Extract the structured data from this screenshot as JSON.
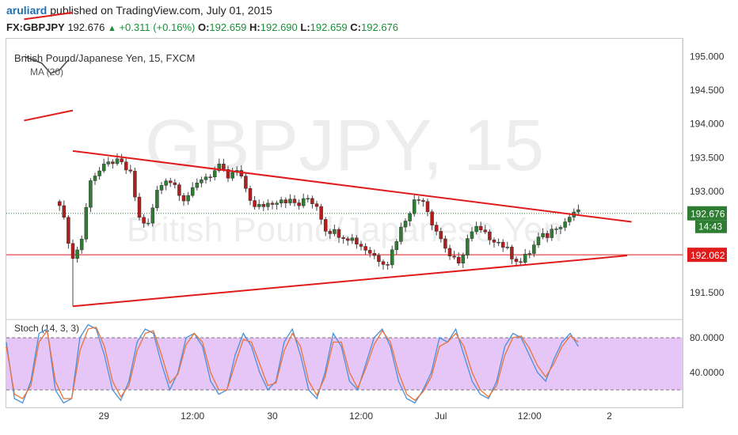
{
  "header": {
    "author": "aruliard",
    "published_text": "published on TradingView.com, July 01, 2015",
    "symbol": "FX:GBPJPY",
    "last": "192.676",
    "change": "+0.311 (+0.16%)",
    "o_label": "O:",
    "o": "192.659",
    "h_label": "H:",
    "h": "192.690",
    "l_label": "L:",
    "l": "192.659",
    "c_label": "C:",
    "c": "192.676"
  },
  "colors": {
    "up": "#2e7d32",
    "down": "#b71c1c",
    "trendline": "#e01b1b",
    "stoch_k": "#4a90d9",
    "stoch_d": "#e8743b",
    "stoch_band": "#e6c6f7"
  },
  "chart_data": [
    {
      "type": "candlestick",
      "title": "British Pound/Japanese Yen, 15, FXCM",
      "watermark_main": "GBPJPY, 15",
      "watermark_sub": "British Pound/Japanese Yen",
      "y_ticks": [
        "195.000",
        "194.500",
        "194.000",
        "193.500",
        "193.000",
        "191.500"
      ],
      "x_ticks": [
        "29",
        "12:00",
        "30",
        "12:00",
        "Jul",
        "12:00",
        "2"
      ],
      "ylim": [
        191.15,
        195.25
      ],
      "price_label": "192.676",
      "countdown_label": "14:43",
      "level_label": "192.062",
      "horizontal_level": 192.062,
      "last_price": 192.676,
      "close_path": [
        [
          0,
          192.85
        ],
        [
          3,
          192.0
        ],
        [
          5,
          192.3
        ],
        [
          7,
          193.2
        ],
        [
          10,
          193.35
        ],
        [
          12,
          193.45
        ],
        [
          14,
          193.4
        ],
        [
          16,
          193.25
        ],
        [
          18,
          192.6
        ],
        [
          20,
          192.5
        ],
        [
          22,
          193.0
        ],
        [
          24,
          193.2
        ],
        [
          26,
          193.1
        ],
        [
          28,
          192.9
        ],
        [
          30,
          193.0
        ],
        [
          32,
          193.2
        ],
        [
          34,
          193.25
        ],
        [
          36,
          193.35
        ],
        [
          38,
          193.2
        ],
        [
          40,
          193.3
        ],
        [
          42,
          193.05
        ],
        [
          44,
          192.75
        ],
        [
          46,
          192.8
        ],
        [
          48,
          192.85
        ],
        [
          50,
          192.9
        ],
        [
          52,
          192.85
        ],
        [
          54,
          192.8
        ],
        [
          56,
          192.9
        ],
        [
          58,
          192.8
        ],
        [
          60,
          192.45
        ],
        [
          62,
          192.4
        ],
        [
          64,
          192.35
        ],
        [
          66,
          192.3
        ],
        [
          68,
          192.2
        ],
        [
          70,
          192.1
        ],
        [
          72,
          192.0
        ],
        [
          74,
          191.95
        ],
        [
          76,
          192.3
        ],
        [
          78,
          192.6
        ],
        [
          80,
          192.85
        ],
        [
          82,
          192.9
        ],
        [
          84,
          192.55
        ],
        [
          86,
          192.3
        ],
        [
          88,
          192.05
        ],
        [
          90,
          191.9
        ],
        [
          92,
          192.3
        ],
        [
          94,
          192.45
        ],
        [
          96,
          192.35
        ],
        [
          98,
          192.3
        ],
        [
          100,
          192.2
        ],
        [
          102,
          192.05
        ],
        [
          104,
          191.95
        ],
        [
          106,
          192.1
        ],
        [
          108,
          192.3
        ],
        [
          110,
          192.35
        ],
        [
          112,
          192.5
        ],
        [
          114,
          192.55
        ],
        [
          116,
          192.7
        ],
        [
          117,
          192.68
        ]
      ],
      "candle_count": 118,
      "x_tick_index": [
        10,
        30,
        48,
        68,
        86,
        106,
        124
      ],
      "trendlines": [
        {
          "points": [
            [
              -8,
              195.55
            ],
            [
              3,
              195.65
            ]
          ]
        },
        {
          "points": [
            [
              -8,
              194.05
            ],
            [
              3,
              194.2
            ]
          ]
        },
        {
          "points": [
            [
              3,
              193.6
            ],
            [
              129,
              192.55
            ]
          ]
        },
        {
          "points": [
            [
              3,
              191.3
            ],
            [
              128,
              192.05
            ]
          ]
        }
      ],
      "ma_overlay": {
        "label": "MA (20)",
        "values": [
          [
            -8,
            195.0
          ],
          [
            -4,
            194.9
          ],
          [
            -2,
            194.75
          ],
          [
            0,
            194.8
          ],
          [
            2,
            194.95
          ]
        ]
      }
    },
    {
      "type": "line",
      "title": "Stoch (14, 3, 3)",
      "y_ticks": [
        "80.0000",
        "40.0000"
      ],
      "ylim": [
        0,
        100
      ],
      "band": [
        20,
        80
      ],
      "series": [
        {
          "color_key": "stoch_k",
          "values": [
            75,
            10,
            5,
            30,
            85,
            90,
            20,
            5,
            10,
            80,
            95,
            90,
            60,
            20,
            8,
            30,
            75,
            90,
            85,
            50,
            20,
            40,
            80,
            85,
            70,
            30,
            15,
            20,
            60,
            85,
            70,
            40,
            20,
            30,
            75,
            90,
            60,
            20,
            10,
            40,
            85,
            70,
            30,
            20,
            50,
            80,
            90,
            70,
            30,
            10,
            5,
            20,
            40,
            80,
            75,
            90,
            60,
            30,
            15,
            10,
            30,
            70,
            85,
            80,
            60,
            40,
            30,
            55,
            75,
            85,
            70
          ]
        },
        {
          "color_key": "stoch_d",
          "values": [
            70,
            15,
            10,
            25,
            75,
            88,
            30,
            10,
            10,
            65,
            90,
            92,
            70,
            30,
            12,
            25,
            65,
            85,
            88,
            60,
            28,
            38,
            72,
            85,
            75,
            40,
            20,
            20,
            50,
            78,
            75,
            50,
            25,
            28,
            65,
            85,
            70,
            30,
            14,
            35,
            75,
            75,
            40,
            22,
            45,
            72,
            88,
            75,
            40,
            15,
            8,
            18,
            35,
            70,
            75,
            85,
            70,
            40,
            20,
            12,
            25,
            60,
            80,
            82,
            68,
            48,
            35,
            50,
            70,
            82,
            75
          ]
        }
      ]
    }
  ]
}
